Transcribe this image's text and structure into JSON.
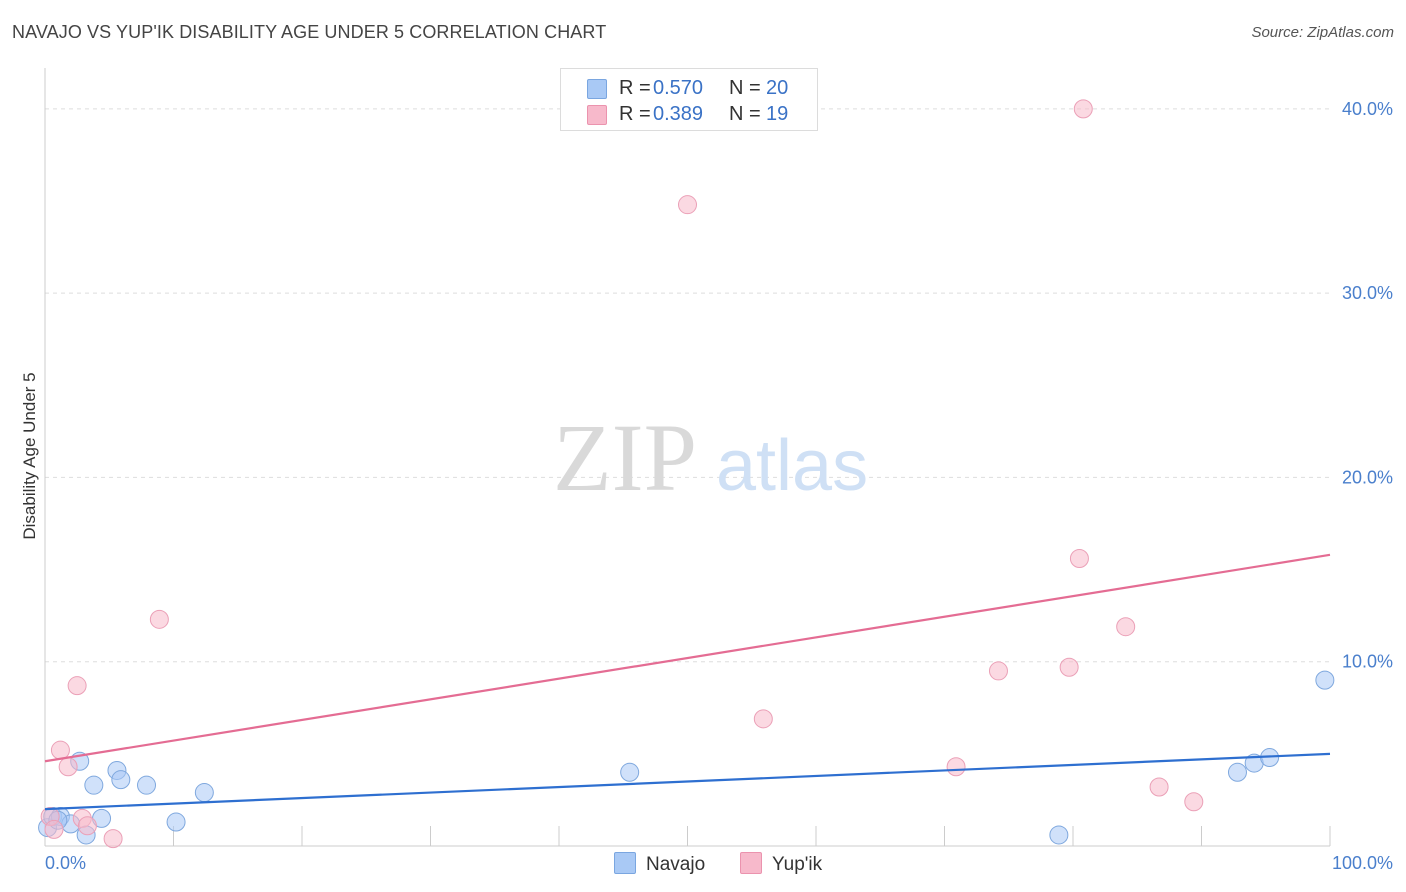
{
  "title": "NAVAJO VS YUP'IK DISABILITY AGE UNDER 5 CORRELATION CHART",
  "source": "Source: ZipAtlas.com",
  "watermark": {
    "zip": "ZIP",
    "atlas": "atlas"
  },
  "legend": {
    "rows": [
      {
        "r_label": "R =",
        "r_value": "0.570",
        "n_label": "N =",
        "n_value": "20",
        "color": "#a9c9f5"
      },
      {
        "r_label": "R =",
        "r_value": "0.389",
        "n_label": "N =",
        "n_value": "19",
        "color": "#f7b9cb"
      }
    ]
  },
  "bottom_legend": {
    "navajo": "Navajo",
    "yupik": "Yup'ik"
  },
  "chart_data": {
    "type": "scatter",
    "title": "NAVAJO VS YUP'IK DISABILITY AGE UNDER 5 CORRELATION CHART",
    "xlabel": "",
    "ylabel": "Disability Age Under 5",
    "xlim": [
      0,
      100
    ],
    "ylim": [
      0,
      42
    ],
    "x_ticks": [
      0,
      10,
      20,
      30,
      40,
      50,
      60,
      70,
      80,
      90,
      100
    ],
    "x_tick_labels": {
      "min": "0.0%",
      "max": "100.0%"
    },
    "y_ticks": [
      10,
      20,
      30,
      40
    ],
    "y_tick_labels": [
      "10.0%",
      "20.0%",
      "30.0%",
      "40.0%"
    ],
    "grid": true,
    "series": [
      {
        "name": "Navajo",
        "color": "#a9c9f5",
        "line_color": "#2e6fd0",
        "points": [
          [
            0.2,
            1.0
          ],
          [
            0.6,
            1.6
          ],
          [
            1.2,
            1.6
          ],
          [
            2.0,
            1.2
          ],
          [
            2.7,
            4.6
          ],
          [
            3.2,
            0.6
          ],
          [
            3.8,
            3.3
          ],
          [
            4.4,
            1.5
          ],
          [
            5.6,
            4.1
          ],
          [
            5.9,
            3.6
          ],
          [
            7.9,
            3.3
          ],
          [
            10.2,
            1.3
          ],
          [
            12.4,
            2.9
          ],
          [
            45.5,
            4.0
          ],
          [
            78.9,
            0.6
          ],
          [
            92.8,
            4.0
          ],
          [
            94.1,
            4.5
          ],
          [
            95.3,
            4.8
          ],
          [
            99.6,
            9.0
          ],
          [
            1.0,
            1.4
          ]
        ],
        "trend": {
          "x": [
            0,
            100
          ],
          "y": [
            2.0,
            5.0
          ]
        }
      },
      {
        "name": "Yup'ik",
        "color": "#f7b9cb",
        "line_color": "#e46c93",
        "points": [
          [
            0.4,
            1.6
          ],
          [
            0.7,
            0.9
          ],
          [
            1.2,
            5.2
          ],
          [
            1.8,
            4.3
          ],
          [
            2.5,
            8.7
          ],
          [
            2.9,
            1.5
          ],
          [
            3.3,
            1.1
          ],
          [
            5.3,
            0.4
          ],
          [
            8.9,
            12.3
          ],
          [
            50.0,
            34.8
          ],
          [
            55.9,
            6.9
          ],
          [
            70.9,
            4.3
          ],
          [
            74.2,
            9.5
          ],
          [
            79.7,
            9.7
          ],
          [
            80.5,
            15.6
          ],
          [
            80.8,
            40.0
          ],
          [
            84.1,
            11.9
          ],
          [
            86.7,
            3.2
          ],
          [
            89.4,
            2.4
          ]
        ],
        "trend": {
          "x": [
            0,
            100
          ],
          "y": [
            4.6,
            15.8
          ]
        }
      }
    ]
  }
}
